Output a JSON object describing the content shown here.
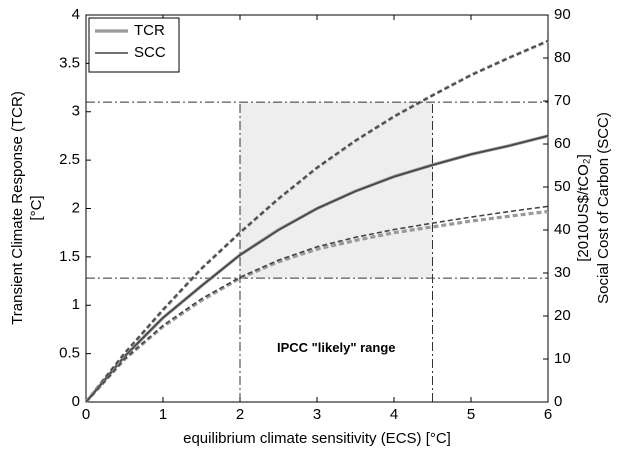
{
  "chart_data": {
    "type": "line",
    "xlabel": "equilibrium climate sensitivity (ECS) [°C]",
    "ylabel": [
      "Transient Climate Response (TCR)",
      "[°C]"
    ],
    "y2label": [
      "Social Cost of Carbon (SCC)",
      "[2010US$/tCO₂]"
    ],
    "annotation": "IPCC \"likely\" range",
    "xlim": [
      0,
      6
    ],
    "xticks": [
      0,
      1,
      2,
      3,
      4,
      5,
      6
    ],
    "ylim": [
      0,
      4
    ],
    "yticks": [
      0,
      0.5,
      1,
      1.5,
      2,
      2.5,
      3,
      3.5,
      4
    ],
    "y2lim": [
      0,
      90
    ],
    "y2ticks": [
      0,
      10,
      20,
      30,
      40,
      50,
      60,
      70,
      80,
      90
    ],
    "legend": "upper left",
    "likely_range": {
      "x": [
        2,
        4.5
      ],
      "y": [
        1.28,
        3.1
      ],
      "color": "#eeeeee"
    },
    "x": [
      0,
      0.5,
      1,
      1.5,
      2,
      2.5,
      3,
      3.5,
      4,
      4.5,
      5,
      5.5,
      6
    ],
    "series": [
      {
        "name": "TCR",
        "color": "#999999",
        "values": [
          0,
          0.47,
          0.87,
          1.2,
          1.52,
          1.78,
          2.0,
          2.18,
          2.33,
          2.45,
          2.56,
          2.65,
          2.75
        ]
      },
      {
        "name": "SCC",
        "color": "#444444",
        "axis": "y2",
        "values": [
          0,
          10.6,
          19.6,
          27,
          34.2,
          40,
          45,
          49,
          52.4,
          55.1,
          57.6,
          59.6,
          61.9
        ]
      },
      {
        "color": "#999999",
        "dashed": true,
        "values": [
          0,
          0.5,
          0.95,
          1.38,
          1.75,
          2.1,
          2.42,
          2.7,
          2.95,
          3.17,
          3.38,
          3.56,
          3.73
        ]
      },
      {
        "color": "#444444",
        "dashed": true,
        "axis": "y2",
        "values": [
          0,
          11.3,
          21.5,
          31,
          39.4,
          47.3,
          54.5,
          60.8,
          66.4,
          71.3,
          76,
          80.1,
          84
        ]
      },
      {
        "color": "#999999",
        "dashed": true,
        "values": [
          0,
          0.44,
          0.78,
          1.05,
          1.28,
          1.45,
          1.58,
          1.67,
          1.75,
          1.81,
          1.87,
          1.92,
          1.97
        ]
      },
      {
        "color": "#444444",
        "dashed": true,
        "axis": "y2",
        "values": [
          0,
          10,
          17.8,
          24,
          29,
          33,
          36.1,
          38.3,
          40.1,
          41.6,
          43,
          44.3,
          45.5
        ]
      }
    ]
  }
}
